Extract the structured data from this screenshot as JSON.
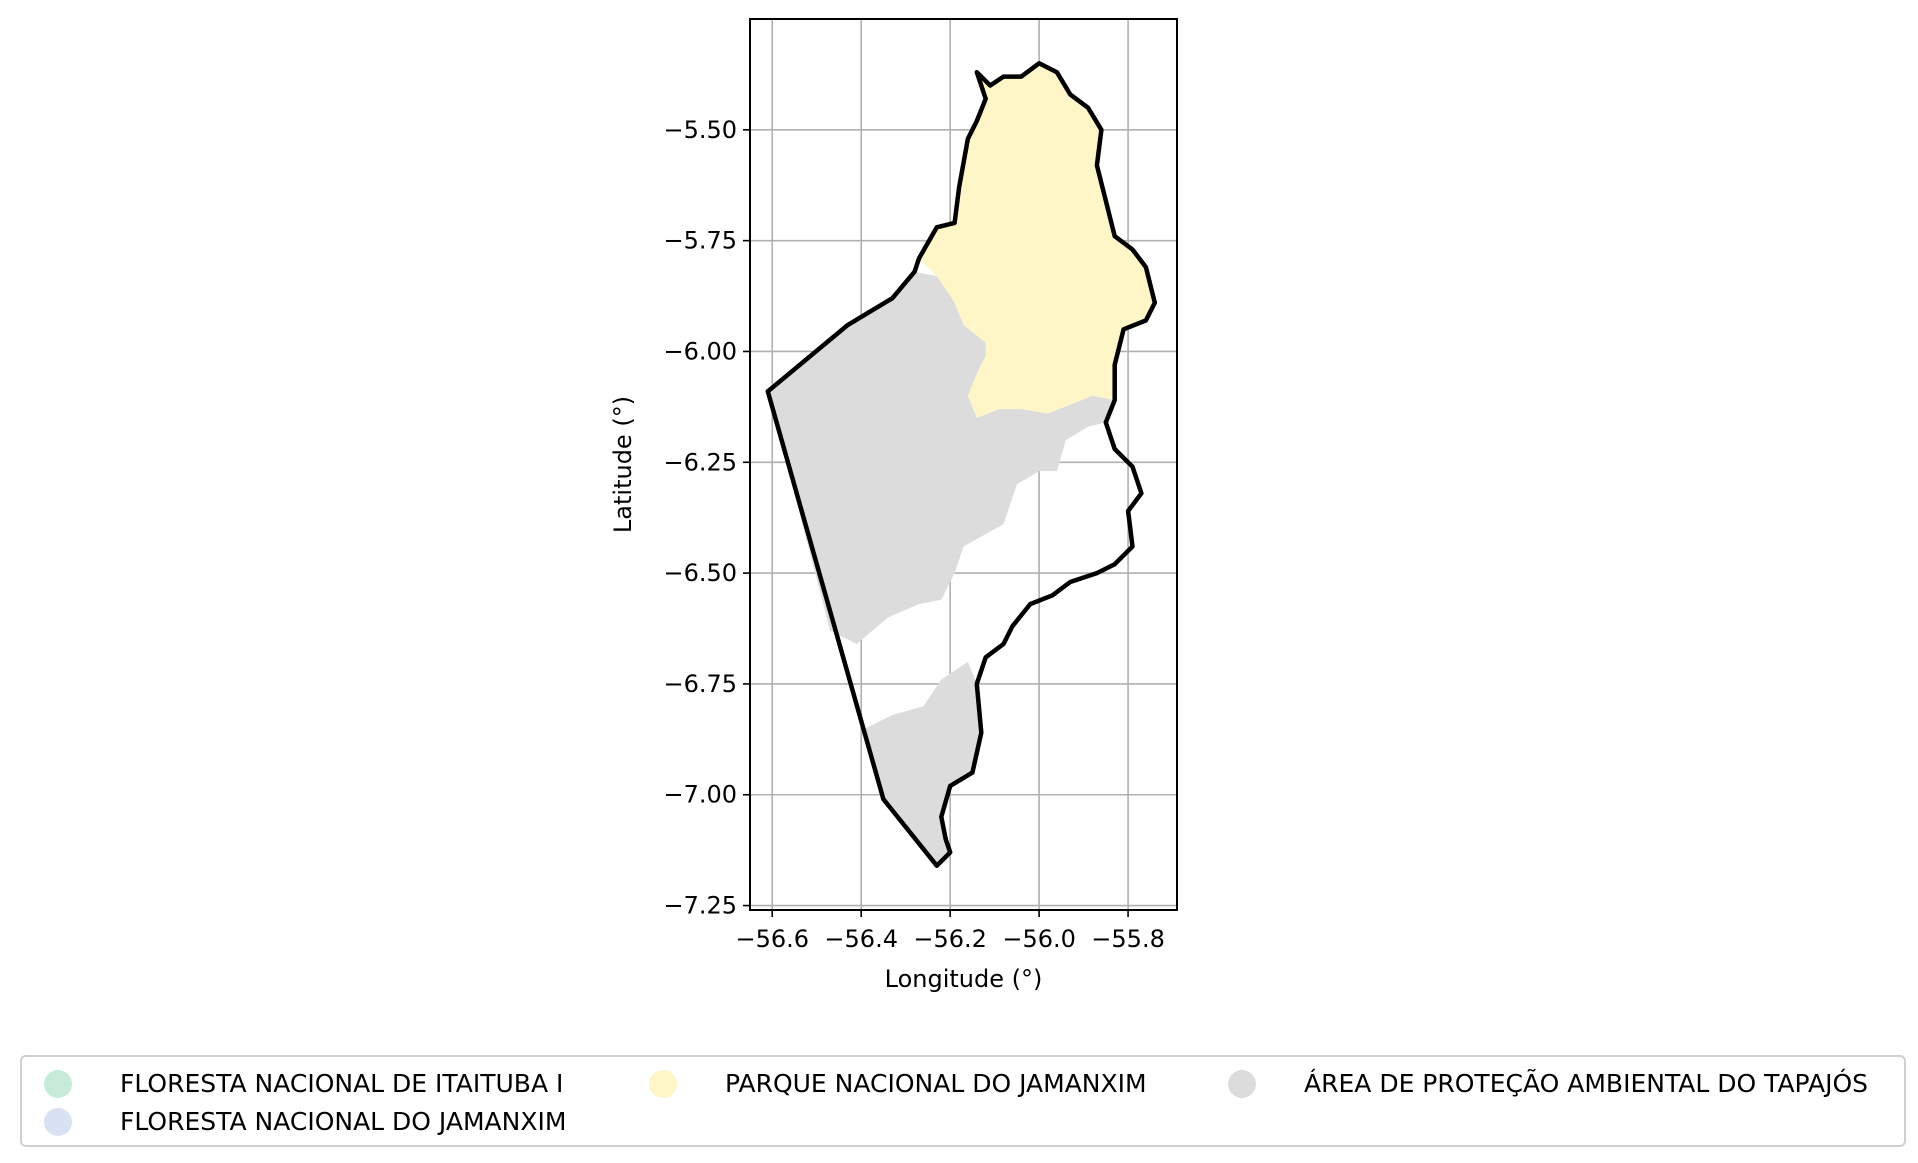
{
  "chart_data": {
    "type": "map",
    "xlabel": "Longitude (°)",
    "ylabel": "Latitude (°)",
    "xlim": [
      -56.65,
      -55.69
    ],
    "ylim": [
      -7.26,
      -5.25
    ],
    "x_ticks": [
      -56.6,
      -56.4,
      -56.2,
      -56.0,
      -55.8
    ],
    "x_tick_labels": [
      "−56.6",
      "−56.4",
      "−56.2",
      "−56.0",
      "−55.8"
    ],
    "y_ticks": [
      -5.5,
      -5.75,
      -6.0,
      -6.25,
      -6.5,
      -6.75,
      -7.0,
      -7.25
    ],
    "y_tick_labels": [
      "−5.50",
      "−5.75",
      "−6.00",
      "−6.25",
      "−6.50",
      "−6.75",
      "−7.00",
      "−7.25"
    ],
    "grid": true,
    "legend_placement": "bottom",
    "legend": [
      {
        "label": "FLORESTA NACIONAL DE ITAITUBA I",
        "color": "#c6ecd9"
      },
      {
        "label": "FLORESTA NACIONAL DO JAMANXIM",
        "color": "#d9e2f2"
      },
      {
        "label": "PARQUE NACIONAL DO JAMANXIM",
        "color": "#fff6c8"
      },
      {
        "label": "ÁREA DE PROTEÇÃO AMBIENTAL DO TAPAJÓS",
        "color": "#dcdcdc"
      }
    ],
    "outline_color": "#000000",
    "regions": [
      {
        "name": "PARQUE NACIONAL DO JAMANXIM",
        "color": "#fff6c8",
        "polygon": [
          [
            -56.14,
            -5.37
          ],
          [
            -56.11,
            -5.4
          ],
          [
            -56.08,
            -5.38
          ],
          [
            -56.04,
            -5.38
          ],
          [
            -56.0,
            -5.35
          ],
          [
            -55.96,
            -5.37
          ],
          [
            -55.93,
            -5.42
          ],
          [
            -55.89,
            -5.45
          ],
          [
            -55.86,
            -5.5
          ],
          [
            -55.87,
            -5.58
          ],
          [
            -55.85,
            -5.66
          ],
          [
            -55.83,
            -5.74
          ],
          [
            -55.79,
            -5.77
          ],
          [
            -55.76,
            -5.81
          ],
          [
            -55.74,
            -5.89
          ],
          [
            -55.76,
            -5.93
          ],
          [
            -55.81,
            -5.95
          ],
          [
            -55.83,
            -6.03
          ],
          [
            -55.83,
            -6.11
          ],
          [
            -55.88,
            -6.1
          ],
          [
            -55.93,
            -6.12
          ],
          [
            -55.98,
            -6.14
          ],
          [
            -56.04,
            -6.13
          ],
          [
            -56.09,
            -6.13
          ],
          [
            -56.14,
            -6.15
          ],
          [
            -56.16,
            -6.1
          ],
          [
            -56.14,
            -6.05
          ],
          [
            -56.12,
            -6.01
          ],
          [
            -56.12,
            -5.98
          ],
          [
            -56.17,
            -5.94
          ],
          [
            -56.19,
            -5.89
          ],
          [
            -56.23,
            -5.83
          ],
          [
            -56.27,
            -5.79
          ],
          [
            -56.23,
            -5.72
          ],
          [
            -56.19,
            -5.71
          ],
          [
            -56.18,
            -5.63
          ],
          [
            -56.16,
            -5.52
          ],
          [
            -56.14,
            -5.48
          ],
          [
            -56.12,
            -5.43
          ],
          [
            -56.14,
            -5.37
          ]
        ]
      },
      {
        "name": "ÁREA DE PROTEÇÃO AMBIENTAL DO TAPAJÓS",
        "color": "#dcdcdc",
        "polygon": [
          [
            -56.61,
            -6.09
          ],
          [
            -56.43,
            -5.94
          ],
          [
            -56.33,
            -5.88
          ],
          [
            -56.28,
            -5.82
          ],
          [
            -56.23,
            -5.83
          ],
          [
            -56.19,
            -5.89
          ],
          [
            -56.17,
            -5.94
          ],
          [
            -56.12,
            -5.98
          ],
          [
            -56.12,
            -6.01
          ],
          [
            -56.14,
            -6.05
          ],
          [
            -56.16,
            -6.1
          ],
          [
            -56.14,
            -6.15
          ],
          [
            -56.09,
            -6.13
          ],
          [
            -56.04,
            -6.13
          ],
          [
            -55.98,
            -6.14
          ],
          [
            -55.93,
            -6.12
          ],
          [
            -55.88,
            -6.1
          ],
          [
            -55.83,
            -6.11
          ],
          [
            -55.85,
            -6.16
          ],
          [
            -55.89,
            -6.17
          ],
          [
            -55.94,
            -6.2
          ],
          [
            -55.96,
            -6.27
          ],
          [
            -56.0,
            -6.27
          ],
          [
            -56.05,
            -6.3
          ],
          [
            -56.08,
            -6.39
          ],
          [
            -56.17,
            -6.44
          ],
          [
            -56.19,
            -6.5
          ],
          [
            -56.22,
            -6.56
          ],
          [
            -56.27,
            -6.57
          ],
          [
            -56.34,
            -6.6
          ],
          [
            -56.41,
            -6.66
          ],
          [
            -56.47,
            -6.63
          ],
          [
            -56.61,
            -6.09
          ]
        ]
      },
      {
        "name": "ÁREA DE PROTEÇÃO AMBIENTAL DO TAPAJÓS",
        "color": "#dcdcdc",
        "polygon": [
          [
            -56.39,
            -6.85
          ],
          [
            -56.33,
            -6.82
          ],
          [
            -56.26,
            -6.8
          ],
          [
            -56.22,
            -6.74
          ],
          [
            -56.16,
            -6.7
          ],
          [
            -56.14,
            -6.75
          ],
          [
            -56.13,
            -6.86
          ],
          [
            -56.15,
            -6.95
          ],
          [
            -56.2,
            -6.98
          ],
          [
            -56.22,
            -7.05
          ],
          [
            -56.21,
            -7.1
          ],
          [
            -56.2,
            -7.13
          ],
          [
            -56.23,
            -7.16
          ],
          [
            -56.35,
            -7.01
          ],
          [
            -56.39,
            -6.85
          ]
        ]
      }
    ],
    "boundary": [
      [
        -56.14,
        -5.37
      ],
      [
        -56.11,
        -5.4
      ],
      [
        -56.08,
        -5.38
      ],
      [
        -56.04,
        -5.38
      ],
      [
        -56.0,
        -5.35
      ],
      [
        -55.96,
        -5.37
      ],
      [
        -55.93,
        -5.42
      ],
      [
        -55.89,
        -5.45
      ],
      [
        -55.86,
        -5.5
      ],
      [
        -55.87,
        -5.58
      ],
      [
        -55.85,
        -5.66
      ],
      [
        -55.83,
        -5.74
      ],
      [
        -55.79,
        -5.77
      ],
      [
        -55.76,
        -5.81
      ],
      [
        -55.74,
        -5.89
      ],
      [
        -55.76,
        -5.93
      ],
      [
        -55.81,
        -5.95
      ],
      [
        -55.83,
        -6.03
      ],
      [
        -55.83,
        -6.11
      ],
      [
        -55.85,
        -6.16
      ],
      [
        -55.83,
        -6.22
      ],
      [
        -55.79,
        -6.26
      ],
      [
        -55.77,
        -6.32
      ],
      [
        -55.8,
        -6.36
      ],
      [
        -55.79,
        -6.44
      ],
      [
        -55.83,
        -6.48
      ],
      [
        -55.87,
        -6.5
      ],
      [
        -55.93,
        -6.52
      ],
      [
        -55.97,
        -6.55
      ],
      [
        -56.02,
        -6.57
      ],
      [
        -56.06,
        -6.62
      ],
      [
        -56.08,
        -6.66
      ],
      [
        -56.12,
        -6.69
      ],
      [
        -56.14,
        -6.75
      ],
      [
        -56.13,
        -6.86
      ],
      [
        -56.15,
        -6.95
      ],
      [
        -56.2,
        -6.98
      ],
      [
        -56.22,
        -7.05
      ],
      [
        -56.21,
        -7.1
      ],
      [
        -56.2,
        -7.13
      ],
      [
        -56.23,
        -7.16
      ],
      [
        -56.35,
        -7.01
      ],
      [
        -56.61,
        -6.09
      ],
      [
        -56.43,
        -5.94
      ],
      [
        -56.33,
        -5.88
      ],
      [
        -56.28,
        -5.82
      ],
      [
        -56.27,
        -5.79
      ],
      [
        -56.23,
        -5.72
      ],
      [
        -56.19,
        -5.71
      ],
      [
        -56.18,
        -5.63
      ],
      [
        -56.16,
        -5.52
      ],
      [
        -56.14,
        -5.48
      ],
      [
        -56.12,
        -5.43
      ],
      [
        -56.14,
        -5.37
      ]
    ]
  }
}
